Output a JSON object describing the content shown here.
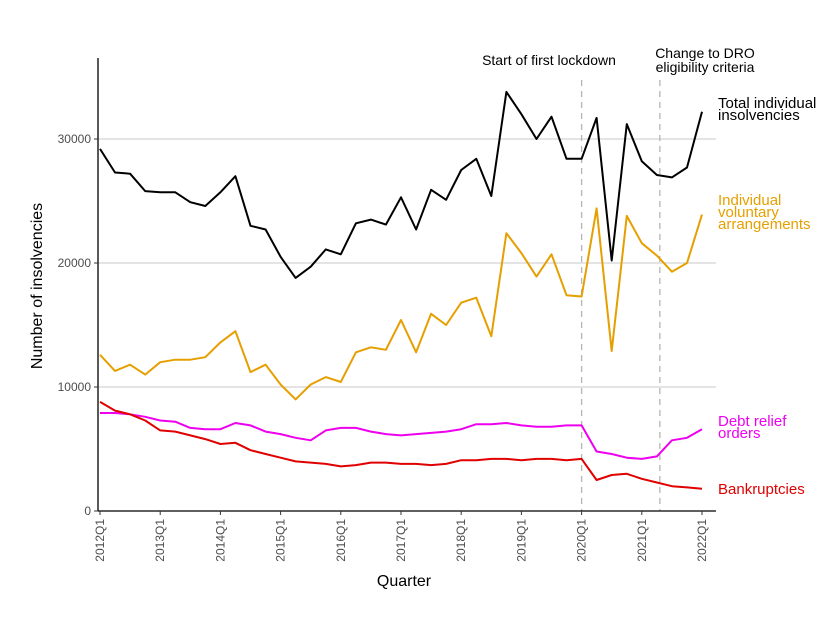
{
  "chart_data": {
    "type": "line",
    "xlabel": "Quarter",
    "ylabel": "Number of insolvencies",
    "ylim": [
      0,
      36000
    ],
    "yticks": [
      0,
      10000,
      20000,
      30000
    ],
    "ytick_labels": [
      "0",
      "10000",
      "20000",
      "30000"
    ],
    "grid": "horizontal",
    "x": [
      "2012Q1",
      "2012Q2",
      "2012Q3",
      "2012Q4",
      "2013Q1",
      "2013Q2",
      "2013Q3",
      "2013Q4",
      "2014Q1",
      "2014Q2",
      "2014Q3",
      "2014Q4",
      "2015Q1",
      "2015Q2",
      "2015Q3",
      "2015Q4",
      "2016Q1",
      "2016Q2",
      "2016Q3",
      "2016Q4",
      "2017Q1",
      "2017Q2",
      "2017Q3",
      "2017Q4",
      "2018Q1",
      "2018Q2",
      "2018Q3",
      "2018Q4",
      "2019Q1",
      "2019Q2",
      "2019Q3",
      "2019Q4",
      "2020Q1",
      "2020Q2",
      "2020Q3",
      "2020Q4",
      "2021Q1",
      "2021Q2",
      "2021Q3",
      "2021Q4",
      "2022Q1"
    ],
    "xtick_labels": [
      "2012Q1",
      "2013Q1",
      "2014Q1",
      "2015Q1",
      "2016Q1",
      "2017Q1",
      "2018Q1",
      "2019Q1",
      "2020Q1",
      "2021Q1",
      "2022Q1"
    ],
    "series": [
      {
        "name_lines": [
          "Total individual",
          "insolvencies"
        ],
        "color": "#000000",
        "values": [
          29200,
          27300,
          27200,
          25800,
          25700,
          25700,
          24900,
          24600,
          25700,
          27000,
          23000,
          22700,
          20500,
          18800,
          19700,
          21100,
          20700,
          23200,
          23500,
          23100,
          25300,
          22700,
          25900,
          25100,
          27500,
          28400,
          25400,
          33800,
          32000,
          30000,
          31800,
          28400,
          28400,
          31700,
          20200,
          31200,
          28200,
          27100,
          26900,
          27700,
          32200
        ]
      },
      {
        "name_lines": [
          "Individual",
          "voluntary",
          "arrangements"
        ],
        "color": "#e69f00",
        "values": [
          12600,
          11300,
          11800,
          11000,
          12000,
          12200,
          12200,
          12400,
          13600,
          14500,
          11200,
          11800,
          10200,
          9000,
          10200,
          10800,
          10400,
          12800,
          13200,
          13000,
          15400,
          12800,
          15900,
          15000,
          16800,
          17200,
          14100,
          22400,
          20800,
          18900,
          20700,
          17400,
          17300,
          24400,
          12900,
          23800,
          21600,
          20600,
          19300,
          20000,
          23900
        ]
      },
      {
        "name_lines": [
          "Debt relief",
          "orders"
        ],
        "color": "#ee00ee",
        "values": [
          7900,
          7900,
          7800,
          7600,
          7300,
          7200,
          6700,
          6600,
          6600,
          7100,
          6900,
          6400,
          6200,
          5900,
          5700,
          6500,
          6700,
          6700,
          6400,
          6200,
          6100,
          6200,
          6300,
          6400,
          6600,
          7000,
          7000,
          7100,
          6900,
          6800,
          6800,
          6900,
          6900,
          4800,
          4600,
          4300,
          4200,
          4400,
          5700,
          5900,
          6600
        ]
      },
      {
        "name_lines": [
          "Bankruptcies"
        ],
        "color": "#e00000",
        "values": [
          8800,
          8100,
          7800,
          7300,
          6500,
          6400,
          6100,
          5800,
          5400,
          5500,
          4900,
          4600,
          4300,
          4000,
          3900,
          3800,
          3600,
          3700,
          3900,
          3900,
          3800,
          3800,
          3700,
          3800,
          4100,
          4100,
          4200,
          4200,
          4100,
          4200,
          4200,
          4100,
          4200,
          2500,
          2900,
          3000,
          2600,
          2300,
          2000,
          1900,
          1800
        ]
      }
    ],
    "annotations": [
      {
        "x": "2020Q1",
        "label_lines": [
          "Start of first lockdown"
        ]
      },
      {
        "x": "2021Q2",
        "label_lines": [
          "Change to DRO",
          "eligibility criteria"
        ]
      }
    ]
  }
}
